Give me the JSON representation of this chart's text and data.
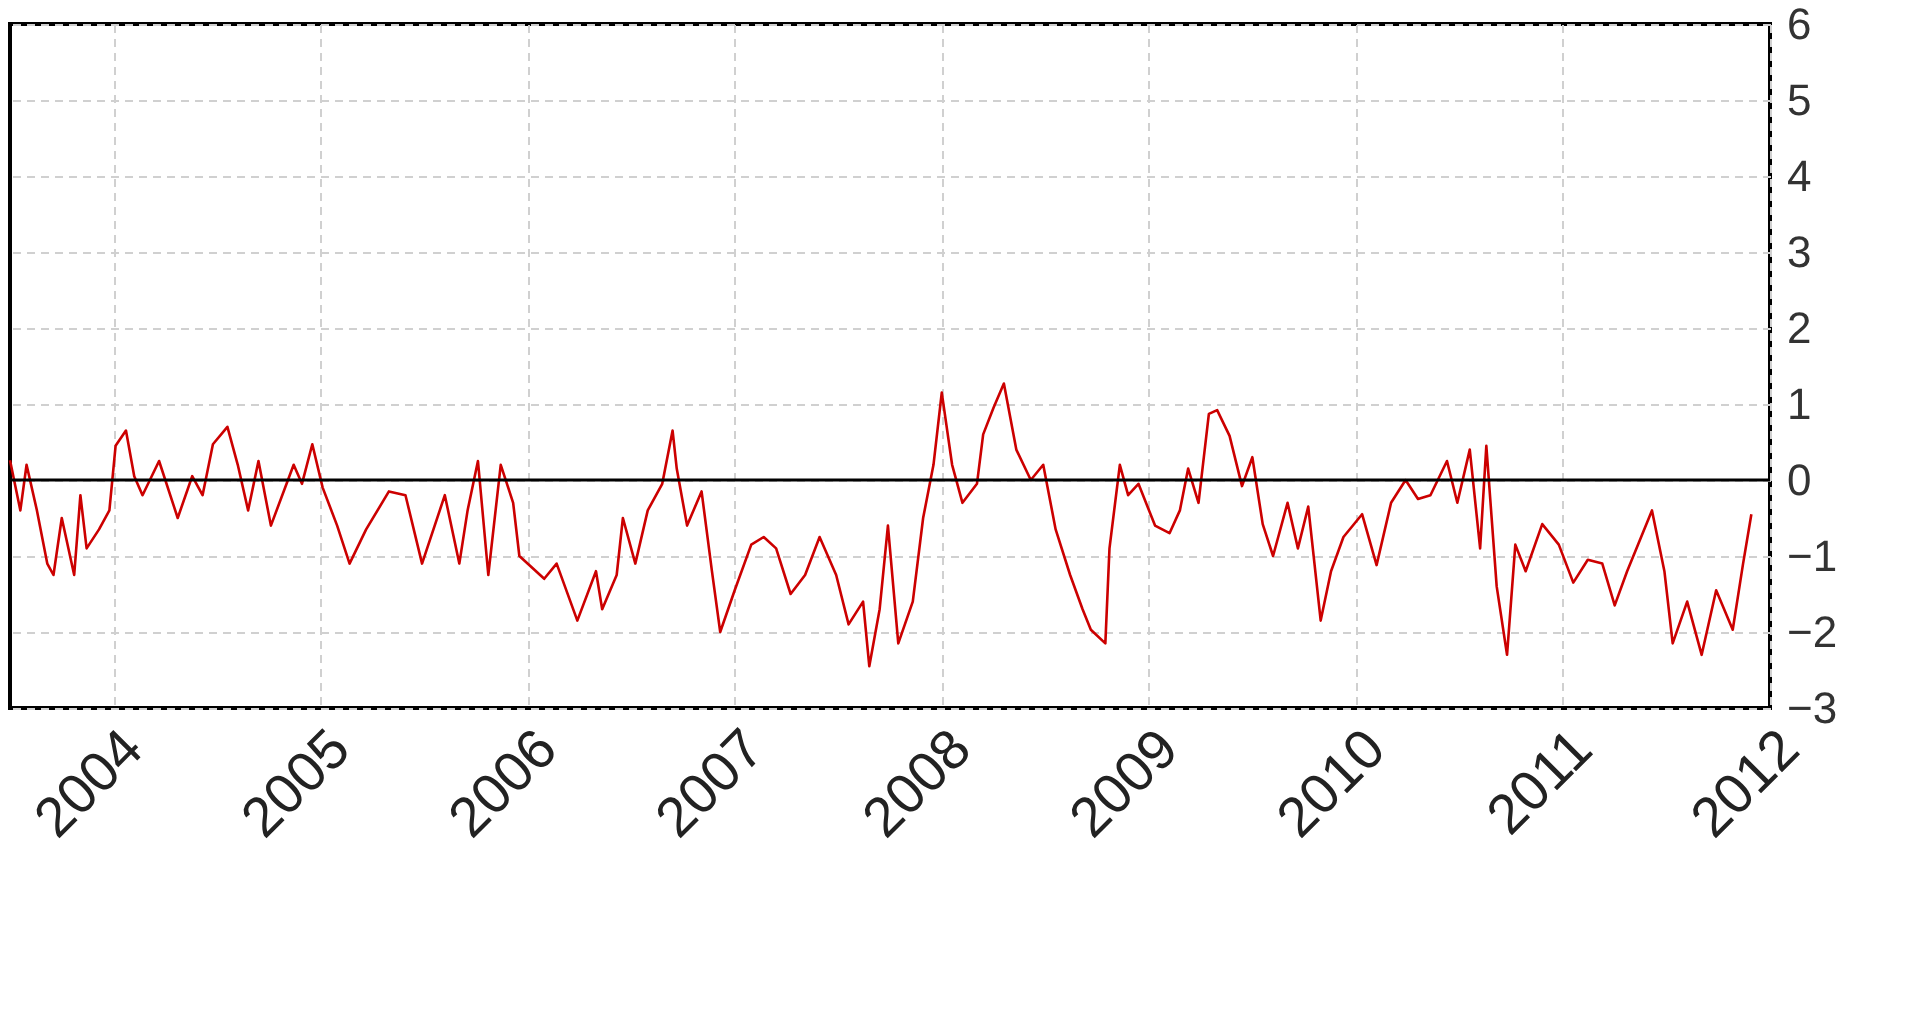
{
  "chart_data": {
    "type": "line",
    "x": [
      2003.5,
      2003.55,
      2003.58,
      2003.63,
      2003.68,
      2003.71,
      2003.75,
      2003.81,
      2003.84,
      2003.87,
      2003.93,
      2003.98,
      2004.01,
      2004.06,
      2004.1,
      2004.14,
      2004.22,
      2004.31,
      2004.38,
      2004.43,
      2004.48,
      2004.55,
      2004.6,
      2004.65,
      2004.7,
      2004.76,
      2004.87,
      2004.91,
      2004.96,
      2005.01,
      2005.08,
      2005.14,
      2005.22,
      2005.33,
      2005.41,
      2005.49,
      2005.6,
      2005.67,
      2005.71,
      2005.76,
      2005.81,
      2005.87,
      2005.93,
      2005.96,
      2006.08,
      2006.14,
      2006.24,
      2006.33,
      2006.36,
      2006.43,
      2006.46,
      2006.52,
      2006.58,
      2006.65,
      2006.7,
      2006.72,
      2006.77,
      2006.84,
      2006.89,
      2006.93,
      2007.0,
      2007.08,
      2007.14,
      2007.2,
      2007.27,
      2007.34,
      2007.41,
      2007.49,
      2007.55,
      2007.62,
      2007.65,
      2007.7,
      2007.74,
      2007.79,
      2007.86,
      2007.91,
      2007.96,
      2008.0,
      2008.05,
      2008.1,
      2008.17,
      2008.2,
      2008.25,
      2008.3,
      2008.36,
      2008.43,
      2008.49,
      2008.55,
      2008.62,
      2008.68,
      2008.72,
      2008.79,
      2008.81,
      2008.86,
      2008.9,
      2008.95,
      2009.03,
      2009.1,
      2009.15,
      2009.19,
      2009.24,
      2009.29,
      2009.33,
      2009.39,
      2009.45,
      2009.5,
      2009.55,
      2009.6,
      2009.67,
      2009.72,
      2009.77,
      2009.83,
      2009.88,
      2009.94,
      2010.03,
      2010.1,
      2010.17,
      2010.24,
      2010.3,
      2010.36,
      2010.44,
      2010.49,
      2010.55,
      2010.6,
      2010.63,
      2010.68,
      2010.73,
      2010.77,
      2010.82,
      2010.9,
      2010.98,
      2011.05,
      2011.12,
      2011.19,
      2011.25,
      2011.31,
      2011.43,
      2011.49,
      2011.53,
      2011.6,
      2011.67,
      2011.74,
      2011.82,
      2011.87,
      2011.91
    ],
    "series": [
      {
        "color": "#cc0000",
        "values": [
          0.26,
          -0.4,
          0.2,
          -0.4,
          -1.1,
          -1.25,
          -0.5,
          -1.25,
          -0.2,
          -0.9,
          -0.65,
          -0.4,
          0.45,
          0.65,
          0.05,
          -0.2,
          0.25,
          -0.5,
          0.05,
          -0.2,
          0.47,
          0.7,
          0.2,
          -0.4,
          0.25,
          -0.6,
          0.2,
          -0.05,
          0.47,
          -0.1,
          -0.6,
          -1.1,
          -0.65,
          -0.15,
          -0.2,
          -1.1,
          -0.2,
          -1.1,
          -0.4,
          0.25,
          -1.25,
          0.2,
          -0.3,
          -1.0,
          -1.3,
          -1.1,
          -1.85,
          -1.2,
          -1.7,
          -1.25,
          -0.5,
          -1.1,
          -0.4,
          -0.05,
          0.65,
          0.15,
          -0.6,
          -0.15,
          -1.2,
          -2.0,
          -1.45,
          -0.85,
          -0.75,
          -0.9,
          -1.5,
          -1.25,
          -0.75,
          -1.25,
          -1.9,
          -1.6,
          -2.45,
          -1.7,
          -0.6,
          -2.15,
          -1.6,
          -0.5,
          0.2,
          1.15,
          0.2,
          -0.3,
          -0.05,
          0.6,
          0.95,
          1.27,
          0.4,
          0.0,
          0.2,
          -0.65,
          -1.25,
          -1.7,
          -1.97,
          -2.15,
          -0.9,
          0.2,
          -0.2,
          -0.05,
          -0.6,
          -0.7,
          -0.4,
          0.15,
          -0.3,
          0.87,
          0.92,
          0.58,
          -0.08,
          0.3,
          -0.58,
          -1.0,
          -0.3,
          -0.9,
          -0.35,
          -1.85,
          -1.2,
          -0.75,
          -0.45,
          -1.12,
          -0.3,
          0.0,
          -0.25,
          -0.2,
          0.25,
          -0.3,
          0.4,
          -0.9,
          0.45,
          -1.4,
          -2.3,
          -0.85,
          -1.2,
          -0.58,
          -0.85,
          -1.35,
          -1.05,
          -1.1,
          -1.65,
          -1.2,
          -0.4,
          -1.2,
          -2.15,
          -1.6,
          -2.3,
          -1.45,
          -1.97,
          -1.1,
          -0.45
        ]
      }
    ],
    "xlim": [
      2003.5,
      2012
    ],
    "xticks": [
      2004,
      2005,
      2006,
      2007,
      2008,
      2009,
      2010,
      2011,
      2012
    ],
    "ylim": [
      -3,
      6
    ],
    "yticks": [
      -3,
      -2,
      -1,
      0,
      1,
      2,
      3,
      4,
      5,
      6
    ],
    "ref_lines": [
      {
        "axis": "y",
        "value": 0,
        "color": "#000000"
      }
    ],
    "grid": true
  }
}
